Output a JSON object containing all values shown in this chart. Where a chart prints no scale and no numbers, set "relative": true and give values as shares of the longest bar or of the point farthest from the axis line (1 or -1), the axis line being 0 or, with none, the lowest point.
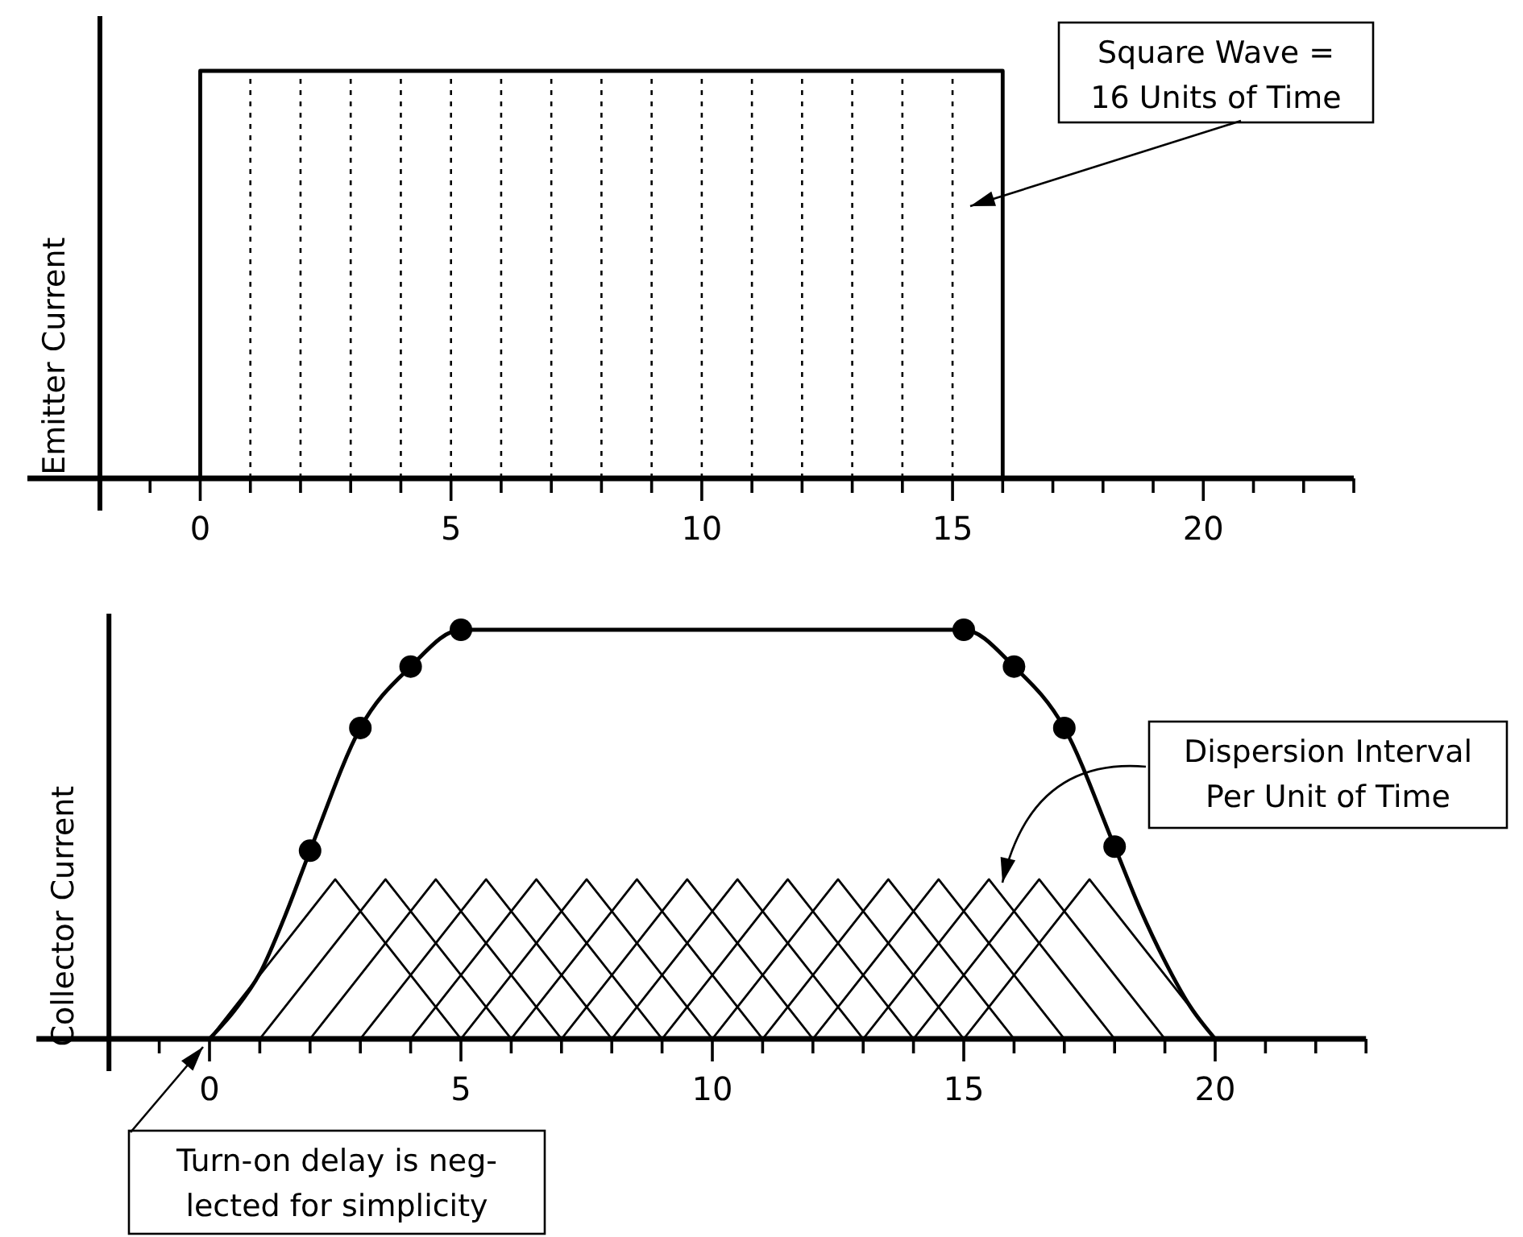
{
  "chart_data": [
    {
      "type": "step",
      "ylabel": "Emitter Current",
      "relative": true,
      "xlim": [
        -2,
        23
      ],
      "xticks": [
        {
          "value": -1,
          "label": null
        },
        0,
        {
          "value": 1,
          "label": null
        },
        {
          "value": 2,
          "label": null
        },
        {
          "value": 3,
          "label": null
        },
        {
          "value": 4,
          "label": null
        },
        5,
        {
          "value": 6,
          "label": null
        },
        {
          "value": 7,
          "label": null
        },
        {
          "value": 8,
          "label": null
        },
        {
          "value": 9,
          "label": null
        },
        10,
        {
          "value": 11,
          "label": null
        },
        {
          "value": 12,
          "label": null
        },
        {
          "value": 13,
          "label": null
        },
        {
          "value": 14,
          "label": null
        },
        15,
        {
          "value": 16,
          "label": null
        },
        {
          "value": 17,
          "label": null
        },
        {
          "value": 18,
          "label": null
        },
        {
          "value": 19,
          "label": null
        },
        20,
        {
          "value": 21,
          "label": null
        },
        {
          "value": 22,
          "label": null
        },
        {
          "value": 23,
          "label": null
        }
      ],
      "series": [
        {
          "color": "#000000",
          "x": [
            -2,
            0,
            16
          ],
          "values": [
            0,
            1,
            0
          ]
        }
      ],
      "ref_lines": [
        {
          "axis": "x",
          "value": 1,
          "line_style": "dotted"
        },
        {
          "axis": "x",
          "value": 2,
          "line_style": "dotted"
        },
        {
          "axis": "x",
          "value": 3,
          "line_style": "dotted"
        },
        {
          "axis": "x",
          "value": 4,
          "line_style": "dotted"
        },
        {
          "axis": "x",
          "value": 5,
          "line_style": "dotted"
        },
        {
          "axis": "x",
          "value": 6,
          "line_style": "dotted"
        },
        {
          "axis": "x",
          "value": 7,
          "line_style": "dotted"
        },
        {
          "axis": "x",
          "value": 8,
          "line_style": "dotted"
        },
        {
          "axis": "x",
          "value": 9,
          "line_style": "dotted"
        },
        {
          "axis": "x",
          "value": 10,
          "line_style": "dotted"
        },
        {
          "axis": "x",
          "value": 11,
          "line_style": "dotted"
        },
        {
          "axis": "x",
          "value": 12,
          "line_style": "dotted"
        },
        {
          "axis": "x",
          "value": 13,
          "line_style": "dotted"
        },
        {
          "axis": "x",
          "value": 14,
          "line_style": "dotted"
        },
        {
          "axis": "x",
          "value": 15,
          "line_style": "dotted"
        }
      ],
      "annotations": [
        "Square Wave =\n16 Units of Time"
      ]
    },
    {
      "type": "line",
      "ylabel": "Collector Current",
      "relative": true,
      "xlim": [
        -2,
        23
      ],
      "xticks": [
        {
          "value": -1,
          "label": null
        },
        0,
        {
          "value": 1,
          "label": null
        },
        {
          "value": 2,
          "label": null
        },
        {
          "value": 3,
          "label": null
        },
        {
          "value": 4,
          "label": null
        },
        5,
        {
          "value": 6,
          "label": null
        },
        {
          "value": 7,
          "label": null
        },
        {
          "value": 8,
          "label": null
        },
        {
          "value": 9,
          "label": null
        },
        10,
        {
          "value": 11,
          "label": null
        },
        {
          "value": 12,
          "label": null
        },
        {
          "value": 13,
          "label": null
        },
        {
          "value": 14,
          "label": null
        },
        15,
        {
          "value": 16,
          "label": null
        },
        {
          "value": 17,
          "label": null
        },
        {
          "value": 18,
          "label": null
        },
        {
          "value": 19,
          "label": null
        },
        20,
        {
          "value": 21,
          "label": null
        },
        {
          "value": 22,
          "label": null
        },
        {
          "value": 23,
          "label": null
        }
      ],
      "series": [
        {
          "color": "#000000",
          "x": [
            0,
            0.5,
            1,
            1.5,
            2,
            3,
            4,
            5,
            15,
            16,
            17,
            18,
            18.5,
            19,
            19.5,
            20
          ],
          "values": [
            0,
            0.07,
            0.16,
            0.3,
            0.46,
            0.76,
            0.91,
            1,
            1,
            0.91,
            0.76,
            0.47,
            0.32,
            0.19,
            0.08,
            0
          ]
        },
        {
          "type": "scatter",
          "marker": "circle",
          "color": "#000000",
          "x": [
            2,
            3,
            4,
            5,
            15,
            16,
            17,
            18
          ],
          "values": [
            0.46,
            0.76,
            0.91,
            1,
            1,
            0.91,
            0.76,
            0.47
          ]
        },
        {
          "color": "#000000",
          "x": [
            0,
            2.5,
            5
          ],
          "values": [
            0,
            0.39,
            0
          ]
        },
        {
          "color": "#000000",
          "x": [
            1,
            3.5,
            6
          ],
          "values": [
            0,
            0.39,
            0
          ]
        },
        {
          "color": "#000000",
          "x": [
            2,
            4.5,
            7
          ],
          "values": [
            0,
            0.39,
            0
          ]
        },
        {
          "color": "#000000",
          "x": [
            3,
            5.5,
            8
          ],
          "values": [
            0,
            0.39,
            0
          ]
        },
        {
          "color": "#000000",
          "x": [
            4,
            6.5,
            9
          ],
          "values": [
            0,
            0.39,
            0
          ]
        },
        {
          "color": "#000000",
          "x": [
            5,
            7.5,
            10
          ],
          "values": [
            0,
            0.39,
            0
          ]
        },
        {
          "color": "#000000",
          "x": [
            6,
            8.5,
            11
          ],
          "values": [
            0,
            0.39,
            0
          ]
        },
        {
          "color": "#000000",
          "x": [
            7,
            9.5,
            12
          ],
          "values": [
            0,
            0.39,
            0
          ]
        },
        {
          "color": "#000000",
          "x": [
            8,
            10.5,
            13
          ],
          "values": [
            0,
            0.39,
            0
          ]
        },
        {
          "color": "#000000",
          "x": [
            9,
            11.5,
            14
          ],
          "values": [
            0,
            0.39,
            0
          ]
        },
        {
          "color": "#000000",
          "x": [
            10,
            12.5,
            15
          ],
          "values": [
            0,
            0.39,
            0
          ]
        },
        {
          "color": "#000000",
          "x": [
            11,
            13.5,
            16
          ],
          "values": [
            0,
            0.39,
            0
          ]
        },
        {
          "color": "#000000",
          "x": [
            12,
            14.5,
            17
          ],
          "values": [
            0,
            0.39,
            0
          ]
        },
        {
          "color": "#000000",
          "x": [
            13,
            15.5,
            18
          ],
          "values": [
            0,
            0.39,
            0
          ]
        },
        {
          "color": "#000000",
          "x": [
            14,
            16.5,
            19
          ],
          "values": [
            0,
            0.39,
            0
          ]
        },
        {
          "color": "#000000",
          "x": [
            15,
            17.5,
            20
          ],
          "values": [
            0,
            0.39,
            0
          ]
        }
      ],
      "annotations": [
        "Dispersion Interval\nPer Unit of Time",
        "Turn-on delay is neg-\nlected for simplicity"
      ]
    }
  ]
}
